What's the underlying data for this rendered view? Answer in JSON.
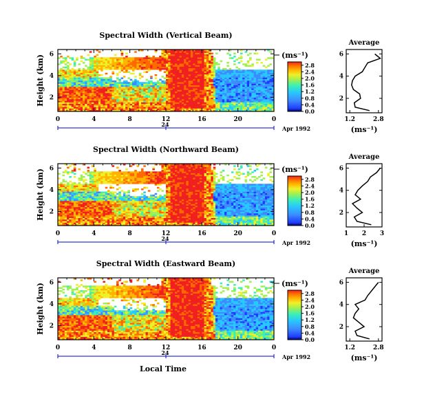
{
  "chart_data": [
    {
      "type": "heatmap",
      "title": "Spectral Width (Vertical Beam)",
      "ylabel": "Height (km)",
      "xlabel": "",
      "x_ticks": [
        "0",
        "4",
        "8",
        "12",
        "16",
        "20",
        "0"
      ],
      "y_ticks": [
        "2",
        "4",
        "6"
      ],
      "xlim": [
        0,
        24
      ],
      "ylim": [
        0.7,
        6.4
      ],
      "date_marker": "24",
      "date_label": "Apr 1992",
      "colorbar": {
        "label": "(ms⁻¹)",
        "ticks": [
          "0.0",
          "0.4",
          "0.8",
          "1.2",
          "1.6",
          "2.0",
          "2.4",
          "2.8"
        ],
        "range": [
          0,
          3.0
        ]
      },
      "average_profile": {
        "title": "Average",
        "unit": "(ms⁻¹)",
        "x_ticks": [
          "1.2",
          "2.8"
        ],
        "xlim": [
          1.0,
          3.0
        ],
        "height": [
          0.9,
          1.2,
          1.6,
          2.0,
          2.4,
          2.8,
          3.2,
          3.6,
          4.0,
          4.4,
          4.8,
          5.2,
          5.6,
          6.0
        ],
        "width": [
          2.3,
          1.5,
          1.45,
          1.8,
          1.75,
          1.4,
          1.3,
          1.35,
          1.5,
          1.9,
          2.05,
          2.2,
          2.9,
          2.6
        ]
      }
    },
    {
      "type": "heatmap",
      "title": "Spectral Width (Northward Beam)",
      "ylabel": "Height (km)",
      "xlabel": "",
      "x_ticks": [
        "0",
        "4",
        "8",
        "12",
        "16",
        "20",
        "0"
      ],
      "y_ticks": [
        "2",
        "4",
        "6"
      ],
      "xlim": [
        0,
        24
      ],
      "ylim": [
        0.7,
        6.4
      ],
      "date_marker": "24",
      "date_label": "Apr 1992",
      "colorbar": {
        "label": "(ms⁻¹)",
        "ticks": [
          "0.0",
          "0.4",
          "0.8",
          "1.2",
          "1.6",
          "2.0",
          "2.4",
          "2.8"
        ],
        "range": [
          0,
          3.0
        ]
      },
      "average_profile": {
        "title": "Average",
        "unit": "(ms⁻¹)",
        "x_ticks": [
          "1",
          "2",
          "3"
        ],
        "xlim": [
          1.0,
          3.0
        ],
        "height": [
          0.9,
          1.2,
          1.6,
          2.0,
          2.4,
          2.8,
          3.2,
          3.6,
          4.0,
          4.4,
          4.8,
          5.2,
          5.6,
          6.0
        ],
        "width": [
          2.4,
          1.6,
          1.45,
          1.9,
          1.6,
          1.35,
          1.8,
          1.5,
          1.65,
          1.9,
          2.2,
          2.35,
          2.7,
          2.9
        ]
      }
    },
    {
      "type": "heatmap",
      "title": "Spectral Width (Eastward Beam)",
      "ylabel": "Height (km)",
      "xlabel": "Local Time",
      "x_ticks": [
        "0",
        "4",
        "8",
        "12",
        "16",
        "20",
        "0"
      ],
      "y_ticks": [
        "2",
        "4",
        "6"
      ],
      "xlim": [
        0,
        24
      ],
      "ylim": [
        0.7,
        6.4
      ],
      "date_marker": "24",
      "date_label": "Apr 1992",
      "colorbar": {
        "label": "(ms⁻¹)",
        "ticks": [
          "0.0",
          "0.4",
          "0.8",
          "1.2",
          "1.6",
          "2.0",
          "2.4",
          "2.8"
        ],
        "range": [
          0,
          3.0
        ]
      },
      "average_profile": {
        "title": "Average",
        "unit": "(ms⁻¹)",
        "x_ticks": [
          "1.2",
          "2.8"
        ],
        "xlim": [
          1.0,
          3.0
        ],
        "height": [
          0.9,
          1.2,
          1.6,
          2.0,
          2.4,
          2.8,
          3.2,
          3.6,
          4.0,
          4.4,
          4.8,
          5.2,
          5.6,
          6.0
        ],
        "width": [
          2.3,
          1.6,
          1.5,
          2.0,
          1.7,
          1.4,
          1.5,
          1.7,
          1.5,
          2.05,
          2.2,
          2.4,
          2.6,
          2.8
        ]
      }
    }
  ],
  "colors": {
    "scale": [
      "#000060",
      "#1e3cff",
      "#3c8cff",
      "#28c8ff",
      "#3cf0b4",
      "#a0f050",
      "#f0f028",
      "#ffb400",
      "#ff6a00",
      "#f02020"
    ],
    "axis": "#000000",
    "date_axis": "#0000cc"
  }
}
